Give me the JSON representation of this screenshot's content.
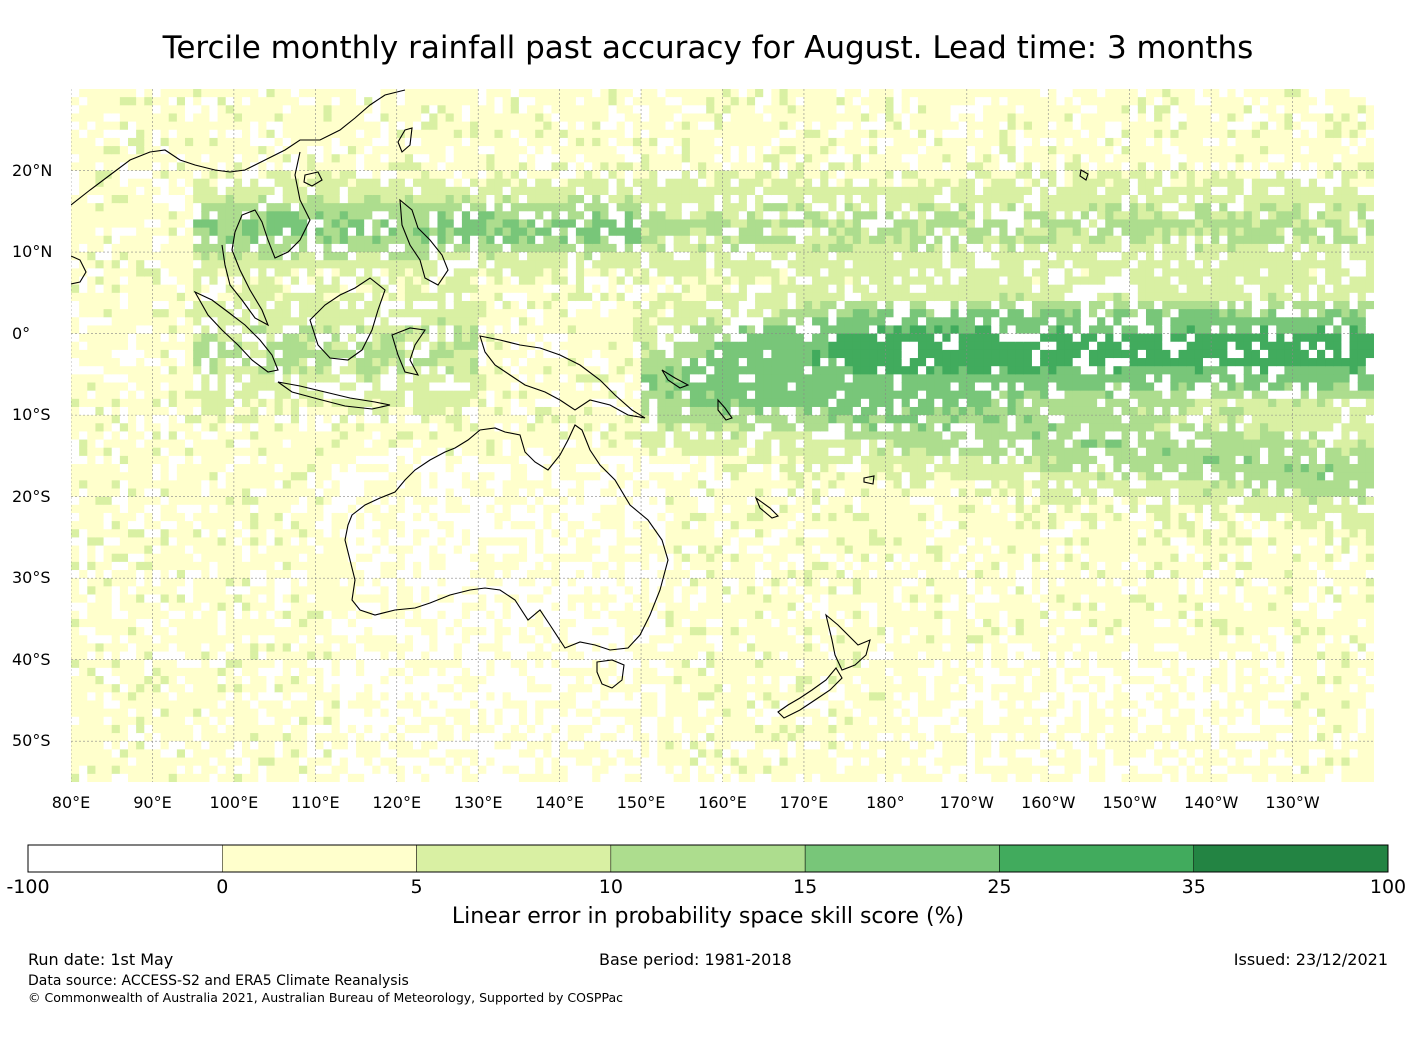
{
  "title": "Tercile monthly rainfall past accuracy for August. Lead time: 3 months",
  "map": {
    "lat_range": [
      -55,
      30
    ],
    "lon_range": [
      80,
      240
    ],
    "lat_labels": [
      "20°N",
      "10°N",
      "0°",
      "10°S",
      "20°S",
      "30°S",
      "40°S",
      "50°S"
    ],
    "lat_values": [
      20,
      10,
      0,
      -10,
      -20,
      -30,
      -40,
      -50
    ],
    "lon_labels": [
      "80°E",
      "90°E",
      "100°E",
      "110°E",
      "120°E",
      "130°E",
      "140°E",
      "150°E",
      "160°E",
      "170°E",
      "180°",
      "170°W",
      "160°W",
      "150°W",
      "140°W",
      "130°W"
    ],
    "lon_values": [
      80,
      90,
      100,
      110,
      120,
      130,
      140,
      150,
      160,
      170,
      180,
      190,
      200,
      210,
      220,
      230
    ],
    "gridlines": true,
    "coastlines": true
  },
  "colorbar": {
    "label": "Linear error in probability space skill score (%)",
    "ticks": [
      "-100",
      "0",
      "5",
      "10",
      "15",
      "25",
      "35",
      "100"
    ],
    "colors": [
      "#ffffff",
      "#ffffcc",
      "#d9f0a3",
      "#addd8e",
      "#78c679",
      "#41ab5d",
      "#238443"
    ]
  },
  "footer": {
    "run_date": "Run date: 1st May",
    "base_period": "Base period: 1981-2018",
    "issued": "Issued: 23/12/2021",
    "source": "Data source: ACCESS-S2 and ERA5 Climate Reanalysis",
    "copyright": "© Commonwealth of Australia 2021, Australian Bureau of Meteorology, Supported by COSPPac"
  }
}
